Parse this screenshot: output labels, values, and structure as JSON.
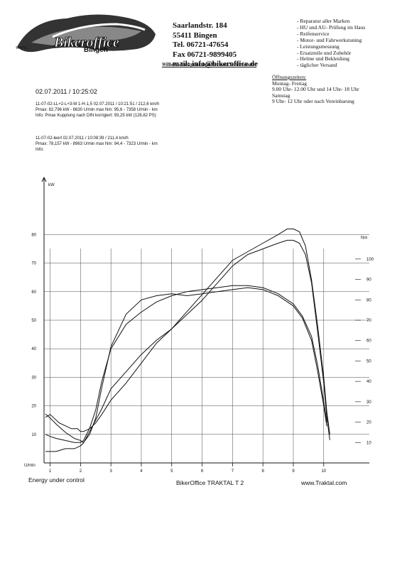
{
  "header": {
    "logo_url": "www.",
    "logo_name": "Bingen",
    "slogan": "Wilbers- Stützpunkthändler und Servicecenter",
    "address_lines": [
      "Saarlandstr. 184",
      "55411 Bingen",
      "Tel. 06721-47654",
      "Fax 06721-9899405",
      "mail: info@bikeroffice.de"
    ],
    "services": [
      "- Reparatur aller Marken",
      "- HU und AU- Prüfung im Haus",
      "- Reifenservice",
      "- Motor- und Fahrwerkstuning",
      "- Leistungsmessung",
      "- Ersatzteile und Zubehör",
      "- Helme und Bekleidung",
      "- täglicher Versand"
    ],
    "hours": [
      "Öffnungszeiten:",
      "Montag- Freitag",
      "9.00 Uhr- 12.00 Uhr und 14 Uhr- 18 Uhr",
      "Samstag",
      "9 Uhr- 12 Uhr oder nach Vereinbarung"
    ]
  },
  "test": {
    "datetime": "02.07.2011  /  10:25:02",
    "run1": {
      "line1": "11-07-02-LL+2-L+3-M 1-H-1,5      02.07.2011   /   10:21:51  /  212,6 km/h",
      "line2": "Pmax: 82,796 kW - 8630 U/min      max Nm: 95,6 - 7358 U/min      -   km",
      "line3": "Info: Pmax Kupplung nach DIN korrigiert: 93,25 kW (126,82 PS)"
    },
    "run2": {
      "line1": "11-07-02-leerl      02.07.2011   /   10:08:39  /  211,4 km/h",
      "line2": "Pmax: 78,157 kW - 8963 U/min      max Nm: 94,4 - 7323 U/min      -   km",
      "line3": "Info:"
    }
  },
  "footer": {
    "left": "Energy  under control",
    "mid": "BikerOffice TRAKTAL  T 2",
    "right": "www.Traktal.com"
  },
  "chart_data": {
    "type": "line",
    "title": "",
    "xlabel": "U/min",
    "ylabel_left": "kW",
    "ylabel_right": "Nm",
    "x_ticks": [
      "1",
      "2",
      "3",
      "4",
      "5",
      "6",
      "7",
      "8",
      "9",
      "10"
    ],
    "y_left_ticks": [
      "10",
      "20",
      "30",
      "40",
      "50",
      "60",
      "70",
      "80"
    ],
    "y_right_ticks": [
      "10",
      "20",
      "30",
      "40",
      "50",
      "60",
      "70",
      "80",
      "90",
      "100"
    ],
    "xlim": [
      0.8,
      11.5
    ],
    "ylim_left": [
      0,
      100
    ],
    "ylim_right": [
      0,
      140
    ],
    "grid": true,
    "series": [
      {
        "kind": "power",
        "axis": "left",
        "x": [
          0.85,
          1.0,
          1.1,
          1.3,
          1.5,
          1.7,
          1.9,
          2.0,
          2.1,
          2.3,
          2.5,
          2.7,
          3.0,
          3.5,
          4.0,
          4.5,
          5.0,
          5.5,
          6.0,
          6.5,
          7.0,
          7.5,
          8.0,
          8.5,
          8.8,
          9.0,
          9.2,
          9.4,
          9.6,
          9.8,
          10.0,
          10.1,
          10.2
        ],
        "y": [
          16,
          17,
          16,
          14,
          13,
          12,
          12,
          11,
          11,
          12,
          14,
          17,
          22,
          28,
          35,
          42,
          47,
          53,
          59,
          65,
          71,
          74,
          77,
          80,
          82,
          82,
          81,
          76,
          64,
          48,
          30,
          18,
          10
        ]
      },
      {
        "kind": "power",
        "axis": "left",
        "x": [
          0.85,
          1.0,
          1.2,
          1.5,
          1.8,
          2.0,
          2.1,
          2.3,
          2.5,
          2.7,
          3.0,
          3.5,
          4.0,
          4.5,
          5.0,
          5.5,
          6.0,
          6.5,
          7.0,
          7.5,
          8.0,
          8.5,
          8.8,
          9.0,
          9.2,
          9.4,
          9.6,
          9.8,
          10.0,
          10.1,
          10.2
        ],
        "y": [
          4,
          4,
          4,
          5,
          5,
          6,
          7,
          11,
          15,
          19,
          26,
          32,
          38,
          43,
          47,
          52,
          57,
          63,
          69,
          73,
          75,
          77,
          78,
          78,
          77,
          73,
          63,
          46,
          28,
          16,
          8
        ]
      },
      {
        "kind": "torque",
        "axis": "right",
        "x": [
          0.85,
          1.0,
          1.2,
          1.5,
          1.8,
          2.0,
          2.1,
          2.3,
          2.5,
          2.7,
          3.0,
          3.5,
          4.0,
          4.5,
          5.0,
          5.5,
          6.0,
          6.5,
          7.0,
          7.5,
          8.0,
          8.5,
          9.0,
          9.3,
          9.6,
          9.8,
          10.0,
          10.1
        ],
        "y": [
          24,
          22,
          19,
          15,
          12,
          11,
          10,
          14,
          22,
          37,
          57,
          73,
          80,
          82,
          83,
          82,
          83,
          84,
          85,
          86,
          85,
          82,
          77,
          71,
          60,
          45,
          28,
          18
        ]
      },
      {
        "kind": "torque",
        "axis": "right",
        "x": [
          0.85,
          1.0,
          1.2,
          1.5,
          1.8,
          2.0,
          2.1,
          2.3,
          2.5,
          2.7,
          3.0,
          3.5,
          4.0,
          4.5,
          5.0,
          5.5,
          6.0,
          6.5,
          7.0,
          7.5,
          8.0,
          8.5,
          9.0,
          9.3,
          9.6,
          9.8,
          10.0,
          10.1
        ],
        "y": [
          14,
          13,
          12,
          11,
          10,
          10,
          11,
          17,
          26,
          40,
          56,
          68,
          74,
          79,
          82,
          84,
          85,
          86,
          87,
          87,
          86,
          83,
          78,
          72,
          62,
          48,
          30,
          20
        ]
      }
    ]
  }
}
